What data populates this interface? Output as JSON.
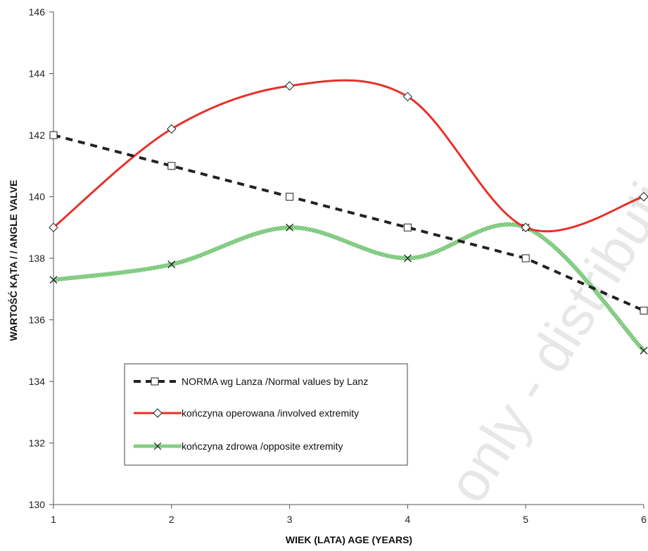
{
  "chart_data": {
    "type": "line",
    "xlabel": "WIEK (LATA) AGE (YEARS)",
    "ylabel": "WARTOŚĆ KĄTA / / ANGLE VALVE",
    "xlim": [
      1,
      6
    ],
    "ylim": [
      130,
      146
    ],
    "x_ticks": [
      1,
      2,
      3,
      4,
      5,
      6
    ],
    "y_ticks": [
      130,
      132,
      134,
      136,
      138,
      140,
      142,
      144,
      146
    ],
    "grid": false,
    "legend_position": "bottom-left",
    "x": [
      1,
      2,
      3,
      4,
      5,
      6
    ],
    "series": [
      {
        "name": "NORMA wg Lanza /Normal values by Lanz",
        "values": [
          142,
          141,
          140,
          139,
          138,
          136.3
        ],
        "color": "#222222",
        "style": "dashed",
        "marker": "square"
      },
      {
        "name": "kończyna operowana /involved extremity",
        "values": [
          139,
          142.2,
          143.6,
          143.25,
          139,
          140
        ],
        "color": "#e8302a",
        "style": "solid",
        "marker": "diamond"
      },
      {
        "name": "kończyna zdrowa /opposite extremity",
        "values": [
          137.3,
          137.8,
          139,
          138,
          139,
          135
        ],
        "color": "#8fd18f",
        "style": "textured",
        "marker": "x"
      }
    ],
    "watermark": "only - distribution"
  }
}
